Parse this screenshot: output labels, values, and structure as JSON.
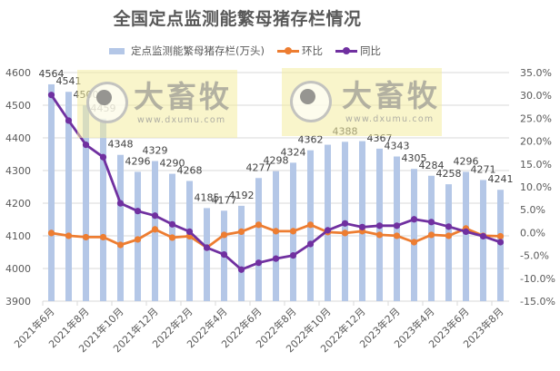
{
  "title": "全国定点监测能繁母猪存栏情况",
  "legend": [
    {
      "label": "定点监测能繁母猪存栏(万头)",
      "type": "bar",
      "color": "#b4c7e7"
    },
    {
      "label": "环比",
      "type": "line",
      "color": "#ed7d31"
    },
    {
      "label": "同比",
      "type": "line",
      "color": "#7030a0"
    }
  ],
  "watermarks": [
    {
      "brand": "大畜牧",
      "url": "www.dxumu.com"
    },
    {
      "brand": "大畜牧",
      "url": "www.dxumu.com"
    }
  ],
  "colors": {
    "bar": "#b4c7e7",
    "huanbi": "#ed7d31",
    "tongbi": "#7030a0",
    "gridline": "#d9d9d9",
    "axis_text": "#595959",
    "data_label": "#404040"
  },
  "chart_data": {
    "type": "bar+line",
    "title": "全国定点监测能繁母猪存栏情况",
    "xlabel": "",
    "ylabel": "",
    "categories": [
      "2021年6月",
      "2021年7月",
      "2021年8月",
      "2021年9月",
      "2021年10月",
      "2021年11月",
      "2021年12月",
      "2022年1月",
      "2022年2月",
      "2022年3月",
      "2022年4月",
      "2022年5月",
      "2022年6月",
      "2022年7月",
      "2022年8月",
      "2022年9月",
      "2022年10月",
      "2022年11月",
      "2022年12月",
      "2023年1月",
      "2023年2月",
      "2023年3月",
      "2023年4月",
      "2023年5月",
      "2023年6月",
      "2023年7月",
      "2023年8月"
    ],
    "x_tick_labels": [
      "2021年6月",
      "2021年8月",
      "2021年10月",
      "2021年12月",
      "2022年2月",
      "2022年4月",
      "2022年6月",
      "2022年8月",
      "2022年10月",
      "2022年12月",
      "2023年2月",
      "2023年4月",
      "2023年6月",
      "2023年8月"
    ],
    "series": [
      {
        "name": "定点监测能繁母猪存栏(万头)",
        "type": "bar",
        "axis": "left",
        "values": [
          4564,
          4541,
          4500,
          4459,
          4348,
          4296,
          4329,
          4290,
          4268,
          4185,
          4177,
          4192,
          4277,
          4298,
          4324,
          4362,
          4379,
          4388,
          4390,
          4367,
          4343,
          4305,
          4284,
          4258,
          4296,
          4271,
          4241
        ],
        "data_labels": [
          "4564",
          "4541",
          "4500",
          "4459",
          "4348",
          "4296",
          "4329",
          "4290",
          "4268",
          "4185",
          "4177",
          "4192",
          "4277",
          "4298",
          "4324",
          "4362",
          null,
          "4388",
          null,
          "4367",
          "4343",
          "4305",
          "4284",
          "4258",
          "4296",
          "4271",
          "4241"
        ]
      },
      {
        "name": "环比",
        "type": "line",
        "axis": "right",
        "unit": "%",
        "values": [
          -0.1,
          -0.7,
          -1.0,
          -1.0,
          -2.7,
          -1.5,
          0.7,
          -1.1,
          -0.8,
          -3.3,
          -0.5,
          0.2,
          1.7,
          0.3,
          0.3,
          1.7,
          0.1,
          -0.1,
          0.3,
          -0.5,
          -0.7,
          -2.1,
          -0.5,
          -0.7,
          0.9,
          -0.7,
          -0.8
        ]
      },
      {
        "name": "同比",
        "type": "line",
        "axis": "right",
        "unit": "%",
        "values": [
          30.1,
          24.5,
          19.2,
          16.5,
          6.4,
          4.7,
          3.7,
          1.8,
          0.2,
          -3.3,
          -4.8,
          -8.1,
          -6.6,
          -5.7,
          -5.0,
          -2.5,
          0.5,
          2.0,
          1.2,
          1.5,
          1.5,
          2.9,
          2.3,
          1.3,
          0.2,
          -0.8,
          -2.1
        ]
      }
    ],
    "y_left": {
      "min": 3900,
      "max": 4600,
      "ticks": [
        3900,
        4000,
        4100,
        4200,
        4300,
        4400,
        4500,
        4600
      ],
      "tick_labels": [
        "3900",
        "4000",
        "4100",
        "4200",
        "4300",
        "4400",
        "4500",
        "4600"
      ]
    },
    "y_right": {
      "min": -15,
      "max": 35,
      "ticks": [
        -15,
        -10,
        -5,
        0,
        5,
        10,
        15,
        20,
        25,
        30,
        35
      ],
      "tick_labels": [
        "-15.0%",
        "-10.0%",
        "-5.0%",
        "0.0%",
        "5.0%",
        "10.0%",
        "15.0%",
        "20.0%",
        "25.0%",
        "30.0%",
        "35.0%"
      ]
    },
    "grid": true,
    "legend_position": "top"
  }
}
